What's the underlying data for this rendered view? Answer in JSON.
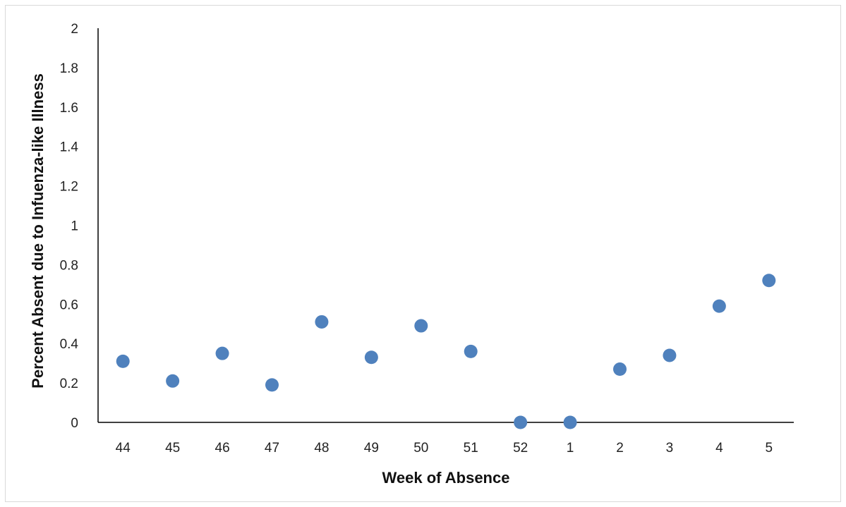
{
  "chart_data": {
    "type": "scatter",
    "title": "",
    "xlabel": "Week of Absence",
    "ylabel": "Percent Absent  due to Infuenza-like Illness",
    "categories": [
      "44",
      "45",
      "46",
      "47",
      "48",
      "49",
      "50",
      "51",
      "52",
      "1",
      "2",
      "3",
      "4",
      "5"
    ],
    "series": [
      {
        "values": [
          0.31,
          0.21,
          0.35,
          0.19,
          0.51,
          0.33,
          0.49,
          0.36,
          0.0,
          0.0,
          0.27,
          0.34,
          0.59,
          0.72
        ]
      }
    ],
    "ylim": [
      0,
      2
    ],
    "yticks": [
      "0",
      "0.2",
      "0.4",
      "0.6",
      "0.8",
      "1",
      "1.2",
      "1.4",
      "1.6",
      "1.8",
      "2"
    ],
    "grid": false,
    "legend": "none",
    "marker_color": "#4f81bd"
  }
}
